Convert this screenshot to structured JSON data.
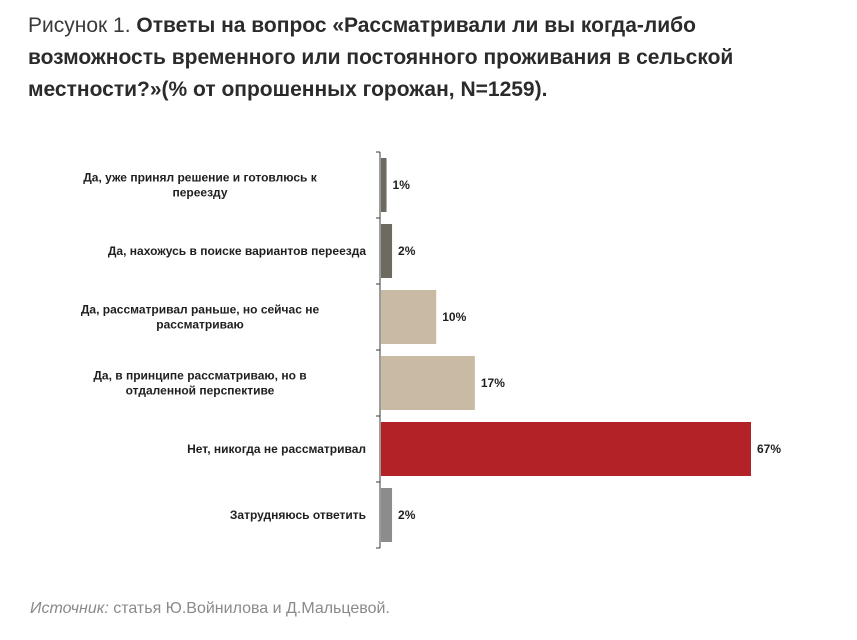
{
  "caption": {
    "prefix": "Рисунок 1. ",
    "title": "Ответы на вопрос «Рассматривали ли вы когда-либо возможность временного или постоянного проживания в сельской местности?»(% от опрошенных горожан, N=1259)."
  },
  "chart_data": {
    "type": "bar",
    "orientation": "horizontal",
    "categories": [
      "Да, уже принял решение и готовлюсь к переезду",
      "Да, нахожусь в поиске вариантов переезда",
      "Да, рассматривал раньше, но сейчас не рассматриваю",
      "Да, в принципе рассматриваю, но в отдаленной перспективе",
      "Нет, никогда не рассматривал",
      "Затрудняюсь ответить"
    ],
    "values": [
      1,
      2,
      10,
      17,
      67,
      2
    ],
    "value_labels": [
      "1%",
      "2%",
      "10%",
      "17%",
      "67%",
      "2%"
    ],
    "bar_colors": [
      "#6f6a60",
      "#6f6a60",
      "#c9bba3",
      "#c9bba3",
      "#b22226",
      "#8c8c8c"
    ],
    "xlim": [
      0,
      67
    ],
    "grid": false,
    "legend": "none"
  },
  "source": {
    "prefix": "Источник:",
    "text": " статья Ю.Войнилова и Д.Мальцевой."
  }
}
